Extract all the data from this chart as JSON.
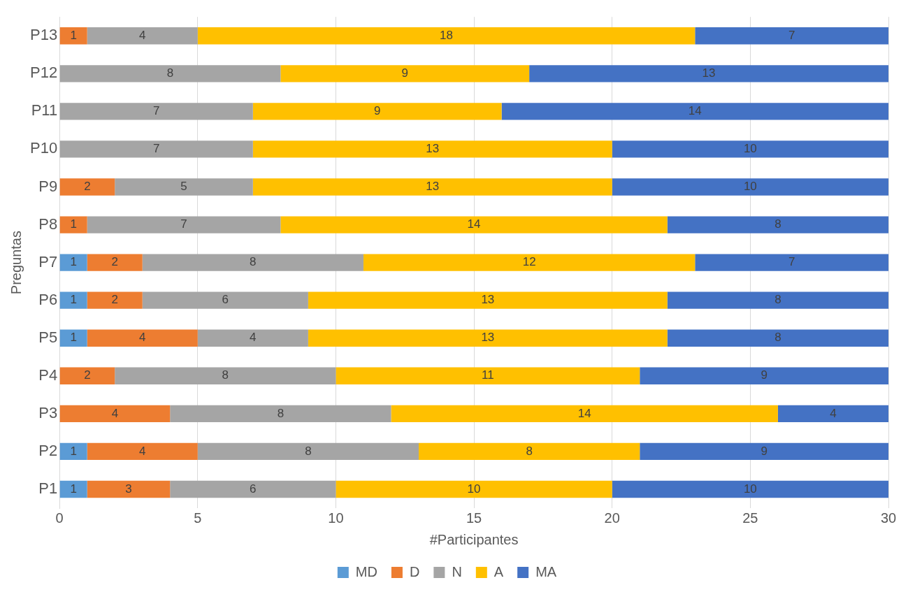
{
  "chart_data": {
    "type": "bar",
    "orientation": "horizontal",
    "stacked": true,
    "xlabel": "#Participantes",
    "ylabel": "Preguntas",
    "categories": [
      "P13",
      "P12",
      "P11",
      "P10",
      "P9",
      "P8",
      "P7",
      "P6",
      "P5",
      "P4",
      "P3",
      "P2",
      "P1"
    ],
    "series": [
      {
        "name": "MD",
        "color": "#5b9bd5",
        "values": [
          null,
          null,
          null,
          null,
          null,
          null,
          1,
          1,
          1,
          null,
          null,
          1,
          1
        ]
      },
      {
        "name": "D",
        "color": "#ed7d31",
        "values": [
          1,
          null,
          null,
          null,
          2,
          1,
          2,
          2,
          4,
          2,
          4,
          4,
          3
        ]
      },
      {
        "name": "N",
        "color": "#a5a5a5",
        "values": [
          4,
          8,
          7,
          7,
          5,
          7,
          8,
          6,
          4,
          8,
          8,
          8,
          6
        ]
      },
      {
        "name": "A",
        "color": "#ffc000",
        "values": [
          18,
          9,
          9,
          13,
          13,
          14,
          12,
          13,
          13,
          11,
          14,
          8,
          10
        ]
      },
      {
        "name": "MA",
        "color": "#4472c4",
        "values": [
          7,
          13,
          14,
          10,
          10,
          8,
          7,
          8,
          8,
          9,
          4,
          9,
          10
        ]
      }
    ],
    "xlim": [
      0,
      30
    ],
    "xticks": [
      0,
      5,
      10,
      15,
      20,
      25,
      30
    ],
    "grid": "x",
    "legend": "bottom",
    "data_labels": true
  }
}
